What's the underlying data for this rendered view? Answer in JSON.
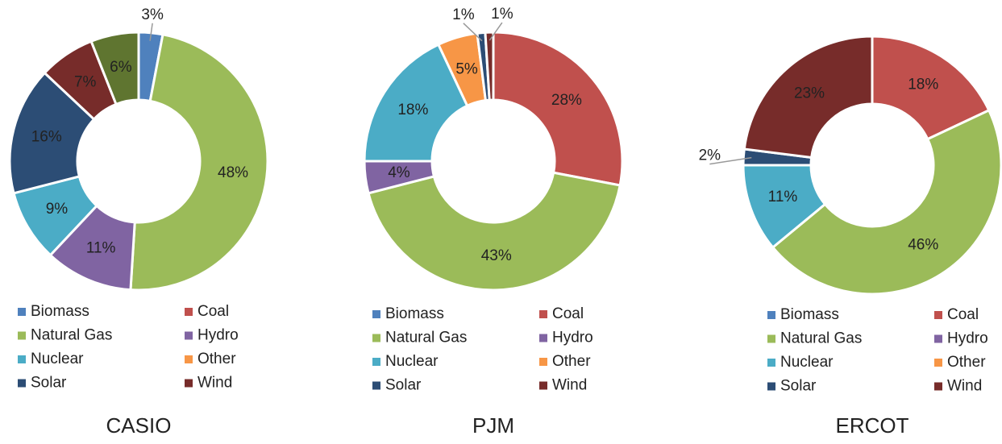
{
  "chart_data": [
    {
      "type": "donut",
      "title": "CASIO",
      "categories": [
        "Biomass",
        "Coal",
        "Natural Gas",
        "Hydro",
        "Nuclear",
        "Other",
        "Solar",
        "Wind",
        null
      ],
      "values": [
        3,
        0,
        48,
        11,
        9,
        0,
        16,
        7,
        6
      ],
      "value_labels": [
        "3%",
        null,
        "48%",
        "11%",
        "9%",
        null,
        "16%",
        "7%",
        "6%"
      ],
      "colors": [
        "#4f81bd",
        "#c0504d",
        "#9bbb59",
        "#8064a2",
        "#4bacc6",
        "#f79646",
        "#2c4d75",
        "#772c2a",
        "#5f7530"
      ]
    },
    {
      "type": "donut",
      "title": "PJM",
      "categories": [
        "Biomass",
        "Coal",
        "Natural Gas",
        "Hydro",
        "Nuclear",
        "Other",
        "Solar",
        "Wind"
      ],
      "values": [
        0,
        28,
        43,
        4,
        18,
        5,
        1,
        1
      ],
      "value_labels": [
        null,
        "28%",
        "43%",
        "4%",
        "18%",
        "5%",
        "1%",
        "1%"
      ],
      "colors": [
        "#4f81bd",
        "#c0504d",
        "#9bbb59",
        "#8064a2",
        "#4bacc6",
        "#f79646",
        "#2c4d75",
        "#772c2a"
      ]
    },
    {
      "type": "donut",
      "title": "ERCOT",
      "categories": [
        "Biomass",
        "Coal",
        "Natural Gas",
        "Hydro",
        "Nuclear",
        "Other",
        "Solar",
        "Wind"
      ],
      "values": [
        0,
        18,
        46,
        0,
        11,
        0,
        2,
        23
      ],
      "value_labels": [
        null,
        "18%",
        "46%",
        null,
        "11%",
        null,
        "2%",
        "23%"
      ],
      "colors": [
        "#4f81bd",
        "#c0504d",
        "#9bbb59",
        "#8064a2",
        "#4bacc6",
        "#f79646",
        "#2c4d75",
        "#772c2a"
      ]
    }
  ]
}
